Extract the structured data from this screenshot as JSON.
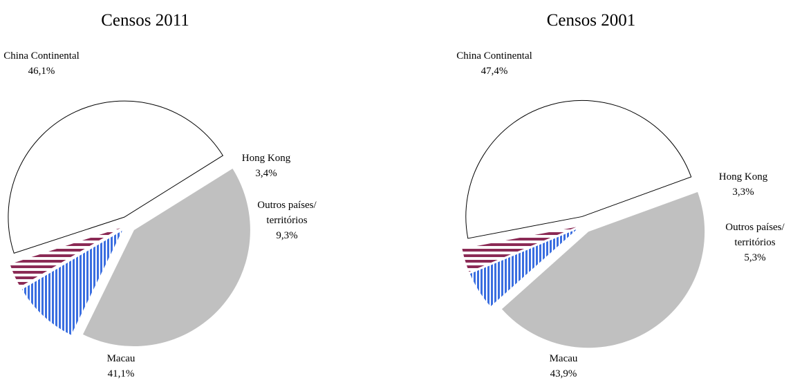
{
  "chart_data": [
    {
      "type": "pie",
      "title": "Censos 2011",
      "categories": [
        "China Continental",
        "Hong Kong",
        "Outros países/ territórios",
        "Macau"
      ],
      "values": [
        46.1,
        3.4,
        9.3,
        41.1
      ],
      "value_labels": [
        "46,1%",
        "3,4%",
        "9,3%",
        "41,1%"
      ]
    },
    {
      "type": "pie",
      "title": "Censos 2001",
      "categories": [
        "China Continental",
        "Hong Kong",
        "Outros países/ territórios",
        "Macau"
      ],
      "values": [
        47.4,
        3.3,
        5.3,
        43.9
      ],
      "value_labels": [
        "47,4%",
        "3,3%",
        "5,3%",
        "43,9%"
      ]
    }
  ]
}
